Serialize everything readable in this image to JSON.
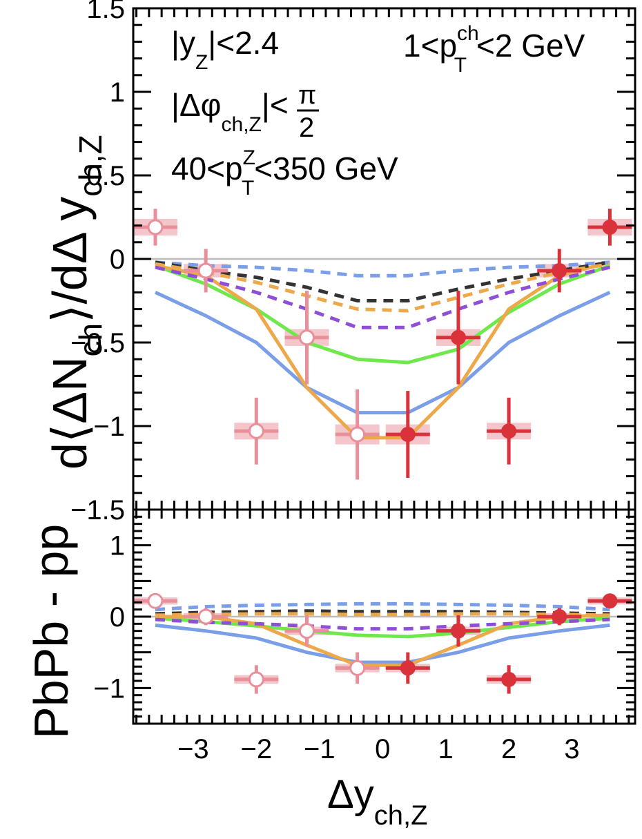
{
  "chart_data": {
    "type": "scatter",
    "x": [
      -3.6,
      -2.8,
      -2.0,
      -1.2,
      -0.4,
      0.4,
      1.2,
      2.0,
      2.8,
      3.6
    ],
    "xlim": [
      -3.95,
      4.0
    ],
    "xticks": [
      -3,
      -2,
      -1,
      0,
      1,
      2,
      3
    ],
    "xlabel": {
      "main": "Δy",
      "sub": "ch,Z"
    },
    "ylabel": {
      "pre": "d⟨ΔN",
      "sub1": "ch",
      "mid": "⟩/dΔ y",
      "sub2": "ch,Z"
    },
    "ylabel_lower": "PbPb - pp",
    "annotations": {
      "rapidity": {
        "pre": "|y",
        "sub": "Z",
        "post": "|<2.4"
      },
      "phi": {
        "pre": "|Δφ",
        "sub": "ch,Z",
        "mid": "|<",
        "num": "π",
        "den": "2"
      },
      "pTZ": {
        "pre": "40<p",
        "sup": "Z",
        "sub": "T",
        "post": "<350 GeV"
      },
      "pTch": {
        "pre": "1<p",
        "sup": "ch",
        "sub": "T",
        "post": "<2 GeV"
      }
    },
    "colors": {
      "data": "#d9323b",
      "data_light": "#e88f99",
      "band": "#f4c6cb",
      "zero_line": "#bbbbbb",
      "black": "#333333",
      "blue": "#7a9ee8",
      "orange": "#eda84a",
      "purple": "#8e4ed6",
      "green": "#6fe84c"
    },
    "panels": [
      {
        "name": "upper",
        "ylim": [
          -1.5,
          1.5
        ],
        "yticks": [
          -1.5,
          -1,
          -0.5,
          0,
          0.5,
          1,
          1.5
        ],
        "ytick_labels": [
          "−1.5",
          "−1",
          "−0.5",
          "0",
          "0.5",
          "1",
          "1.5"
        ],
        "data": {
          "y": [
            0.19,
            -0.07,
            -1.03,
            -0.47,
            -1.05,
            -1.05,
            -0.47,
            -1.03,
            -0.07,
            0.19
          ],
          "stat_err": [
            0.11,
            0.13,
            0.2,
            0.28,
            0.27,
            0.26,
            0.28,
            0.2,
            0.13,
            0.11
          ],
          "sys_err": [
            0.05,
            0.04,
            0.05,
            0.05,
            0.06,
            0.06,
            0.05,
            0.05,
            0.04,
            0.05
          ],
          "open": [
            true,
            true,
            true,
            true,
            true,
            false,
            false,
            false,
            false,
            false
          ]
        },
        "models": [
          {
            "name": "blue-solid",
            "color": "blue",
            "dashed": false,
            "x": [
              -3.6,
              -2.8,
              -2.0,
              -1.2,
              -0.4,
              0.4,
              1.2,
              2.0,
              2.8,
              3.6
            ],
            "y": [
              -0.2,
              -0.34,
              -0.5,
              -0.77,
              -0.92,
              -0.92,
              -0.77,
              -0.5,
              -0.34,
              -0.2
            ]
          },
          {
            "name": "green-solid",
            "color": "green",
            "dashed": false,
            "x": [
              -3.6,
              -2.8,
              -2.0,
              -1.2,
              -0.4,
              0.4,
              1.2,
              2.0,
              2.8,
              3.6
            ],
            "y": [
              -0.04,
              -0.15,
              -0.3,
              -0.5,
              -0.6,
              -0.62,
              -0.54,
              -0.32,
              -0.15,
              -0.04
            ]
          },
          {
            "name": "orange-solid",
            "color": "orange",
            "dashed": false,
            "x": [
              -3.6,
              -2.8,
              -2.0,
              -1.2,
              -0.4,
              0.4,
              1.2,
              2.0,
              2.8,
              3.6
            ],
            "y": [
              -0.04,
              -0.1,
              -0.3,
              -0.77,
              -1.07,
              -1.07,
              -0.77,
              -0.3,
              -0.1,
              -0.02
            ]
          },
          {
            "name": "blue-dashed",
            "color": "blue",
            "dashed": true,
            "x": [
              -3.6,
              -2.8,
              -2.0,
              -1.2,
              -0.4,
              0.4,
              1.2,
              2.0,
              2.8,
              3.6
            ],
            "y": [
              -0.02,
              -0.04,
              -0.05,
              -0.07,
              -0.1,
              -0.1,
              -0.07,
              -0.05,
              -0.04,
              -0.02
            ]
          },
          {
            "name": "black-dashed",
            "color": "black",
            "dashed": true,
            "x": [
              -3.6,
              -2.8,
              -2.0,
              -1.2,
              -0.4,
              0.4,
              1.2,
              2.0,
              2.8,
              3.6
            ],
            "y": [
              -0.02,
              -0.07,
              -0.11,
              -0.17,
              -0.25,
              -0.25,
              -0.18,
              -0.12,
              -0.07,
              -0.02
            ]
          },
          {
            "name": "orange-dashed",
            "color": "orange",
            "dashed": true,
            "x": [
              -3.6,
              -2.8,
              -2.0,
              -1.2,
              -0.4,
              0.4,
              1.2,
              2.0,
              2.8,
              3.6
            ],
            "y": [
              -0.03,
              -0.08,
              -0.14,
              -0.22,
              -0.3,
              -0.31,
              -0.23,
              -0.15,
              -0.08,
              -0.03
            ]
          },
          {
            "name": "purple-dashed",
            "color": "purple",
            "dashed": true,
            "x": [
              -3.6,
              -2.8,
              -2.0,
              -1.2,
              -0.4,
              0.4,
              1.2,
              2.0,
              2.8,
              3.6
            ],
            "y": [
              -0.05,
              -0.12,
              -0.2,
              -0.3,
              -0.41,
              -0.41,
              -0.3,
              -0.2,
              -0.12,
              -0.05
            ]
          }
        ]
      },
      {
        "name": "lower",
        "ylim": [
          -1.5,
          1.5
        ],
        "yticks": [
          -1,
          0,
          1
        ],
        "ytick_labels": [
          "−1",
          "0",
          "1"
        ],
        "data": {
          "y": [
            0.22,
            0.0,
            -0.88,
            -0.2,
            -0.72,
            -0.72,
            -0.2,
            -0.88,
            0.0,
            0.22
          ],
          "stat_err": [
            0.1,
            0.12,
            0.2,
            0.22,
            0.22,
            0.22,
            0.22,
            0.2,
            0.12,
            0.1
          ],
          "sys_err": [
            0.05,
            0.05,
            0.06,
            0.06,
            0.06,
            0.06,
            0.06,
            0.06,
            0.05,
            0.05
          ],
          "open": [
            true,
            true,
            true,
            true,
            true,
            false,
            false,
            false,
            false,
            false
          ]
        },
        "models": [
          {
            "name": "blue-solid",
            "color": "blue",
            "dashed": false,
            "x": [
              -3.6,
              -2.8,
              -2.0,
              -1.2,
              -0.4,
              0.4,
              1.2,
              2.0,
              2.8,
              3.6
            ],
            "y": [
              -0.12,
              -0.2,
              -0.3,
              -0.5,
              -0.64,
              -0.64,
              -0.5,
              -0.3,
              -0.2,
              -0.12
            ]
          },
          {
            "name": "green-solid",
            "color": "green",
            "dashed": false,
            "x": [
              -3.6,
              -2.8,
              -2.0,
              -1.2,
              -0.4,
              0.4,
              1.2,
              2.0,
              2.8,
              3.6
            ],
            "y": [
              -0.02,
              -0.07,
              -0.13,
              -0.2,
              -0.26,
              -0.28,
              -0.23,
              -0.15,
              -0.07,
              -0.02
            ]
          },
          {
            "name": "orange-solid",
            "color": "orange",
            "dashed": false,
            "x": [
              -3.6,
              -2.8,
              -2.0,
              -1.2,
              -0.4,
              0.4,
              1.2,
              2.0,
              2.8,
              3.6
            ],
            "y": [
              0.0,
              0.0,
              -0.1,
              -0.4,
              -0.68,
              -0.68,
              -0.4,
              -0.1,
              0.0,
              0.02
            ]
          },
          {
            "name": "blue-dashed",
            "color": "blue",
            "dashed": true,
            "x": [
              -3.6,
              -2.8,
              -2.0,
              -1.2,
              -0.4,
              0.4,
              1.2,
              2.0,
              2.8,
              3.6
            ],
            "y": [
              0.1,
              0.14,
              0.16,
              0.17,
              0.18,
              0.18,
              0.17,
              0.16,
              0.14,
              0.1
            ]
          },
          {
            "name": "black-dashed",
            "color": "black",
            "dashed": true,
            "x": [
              -3.6,
              -2.8,
              -2.0,
              -1.2,
              -0.4,
              0.4,
              1.2,
              2.0,
              2.8,
              3.6
            ],
            "y": [
              0.04,
              0.06,
              0.07,
              0.08,
              0.07,
              0.07,
              0.07,
              0.06,
              0.05,
              0.04
            ]
          },
          {
            "name": "orange-dashed",
            "color": "orange",
            "dashed": true,
            "x": [
              -3.6,
              -2.8,
              -2.0,
              -1.2,
              -0.4,
              0.4,
              1.2,
              2.0,
              2.8,
              3.6
            ],
            "y": [
              0.02,
              0.03,
              0.04,
              0.04,
              0.03,
              0.03,
              0.04,
              0.04,
              0.03,
              0.02
            ]
          },
          {
            "name": "purple-dashed",
            "color": "purple",
            "dashed": true,
            "x": [
              -3.6,
              -2.8,
              -2.0,
              -1.2,
              -0.4,
              0.4,
              1.2,
              2.0,
              2.8,
              3.6
            ],
            "y": [
              -0.04,
              -0.08,
              -0.1,
              -0.13,
              -0.17,
              -0.17,
              -0.13,
              -0.1,
              -0.07,
              -0.04
            ]
          }
        ]
      }
    ]
  }
}
